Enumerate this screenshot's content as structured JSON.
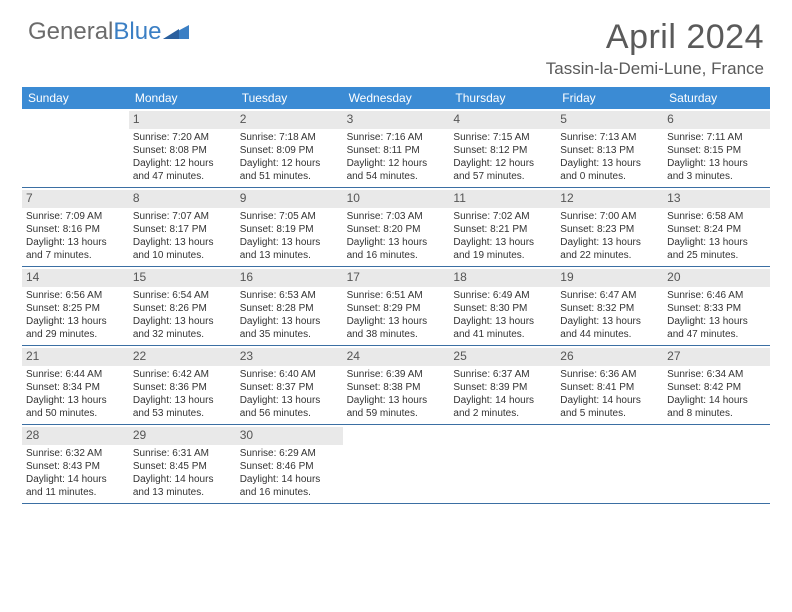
{
  "brand": {
    "part1": "General",
    "part2": "Blue"
  },
  "title": "April 2024",
  "location": "Tassin-la-Demi-Lune, France",
  "colors": {
    "header_bg": "#3b8bd4",
    "border": "#3b6fa3",
    "daynum_bg": "#e9e9e9",
    "text": "#333333",
    "brand_gray": "#6b6b6b",
    "brand_blue": "#3b7fc4"
  },
  "dow": [
    "Sunday",
    "Monday",
    "Tuesday",
    "Wednesday",
    "Thursday",
    "Friday",
    "Saturday"
  ],
  "weeks": [
    [
      {
        "day": "",
        "sunrise": "",
        "sunset": "",
        "daylight": ""
      },
      {
        "day": "1",
        "sunrise": "Sunrise: 7:20 AM",
        "sunset": "Sunset: 8:08 PM",
        "daylight": "Daylight: 12 hours and 47 minutes."
      },
      {
        "day": "2",
        "sunrise": "Sunrise: 7:18 AM",
        "sunset": "Sunset: 8:09 PM",
        "daylight": "Daylight: 12 hours and 51 minutes."
      },
      {
        "day": "3",
        "sunrise": "Sunrise: 7:16 AM",
        "sunset": "Sunset: 8:11 PM",
        "daylight": "Daylight: 12 hours and 54 minutes."
      },
      {
        "day": "4",
        "sunrise": "Sunrise: 7:15 AM",
        "sunset": "Sunset: 8:12 PM",
        "daylight": "Daylight: 12 hours and 57 minutes."
      },
      {
        "day": "5",
        "sunrise": "Sunrise: 7:13 AM",
        "sunset": "Sunset: 8:13 PM",
        "daylight": "Daylight: 13 hours and 0 minutes."
      },
      {
        "day": "6",
        "sunrise": "Sunrise: 7:11 AM",
        "sunset": "Sunset: 8:15 PM",
        "daylight": "Daylight: 13 hours and 3 minutes."
      }
    ],
    [
      {
        "day": "7",
        "sunrise": "Sunrise: 7:09 AM",
        "sunset": "Sunset: 8:16 PM",
        "daylight": "Daylight: 13 hours and 7 minutes."
      },
      {
        "day": "8",
        "sunrise": "Sunrise: 7:07 AM",
        "sunset": "Sunset: 8:17 PM",
        "daylight": "Daylight: 13 hours and 10 minutes."
      },
      {
        "day": "9",
        "sunrise": "Sunrise: 7:05 AM",
        "sunset": "Sunset: 8:19 PM",
        "daylight": "Daylight: 13 hours and 13 minutes."
      },
      {
        "day": "10",
        "sunrise": "Sunrise: 7:03 AM",
        "sunset": "Sunset: 8:20 PM",
        "daylight": "Daylight: 13 hours and 16 minutes."
      },
      {
        "day": "11",
        "sunrise": "Sunrise: 7:02 AM",
        "sunset": "Sunset: 8:21 PM",
        "daylight": "Daylight: 13 hours and 19 minutes."
      },
      {
        "day": "12",
        "sunrise": "Sunrise: 7:00 AM",
        "sunset": "Sunset: 8:23 PM",
        "daylight": "Daylight: 13 hours and 22 minutes."
      },
      {
        "day": "13",
        "sunrise": "Sunrise: 6:58 AM",
        "sunset": "Sunset: 8:24 PM",
        "daylight": "Daylight: 13 hours and 25 minutes."
      }
    ],
    [
      {
        "day": "14",
        "sunrise": "Sunrise: 6:56 AM",
        "sunset": "Sunset: 8:25 PM",
        "daylight": "Daylight: 13 hours and 29 minutes."
      },
      {
        "day": "15",
        "sunrise": "Sunrise: 6:54 AM",
        "sunset": "Sunset: 8:26 PM",
        "daylight": "Daylight: 13 hours and 32 minutes."
      },
      {
        "day": "16",
        "sunrise": "Sunrise: 6:53 AM",
        "sunset": "Sunset: 8:28 PM",
        "daylight": "Daylight: 13 hours and 35 minutes."
      },
      {
        "day": "17",
        "sunrise": "Sunrise: 6:51 AM",
        "sunset": "Sunset: 8:29 PM",
        "daylight": "Daylight: 13 hours and 38 minutes."
      },
      {
        "day": "18",
        "sunrise": "Sunrise: 6:49 AM",
        "sunset": "Sunset: 8:30 PM",
        "daylight": "Daylight: 13 hours and 41 minutes."
      },
      {
        "day": "19",
        "sunrise": "Sunrise: 6:47 AM",
        "sunset": "Sunset: 8:32 PM",
        "daylight": "Daylight: 13 hours and 44 minutes."
      },
      {
        "day": "20",
        "sunrise": "Sunrise: 6:46 AM",
        "sunset": "Sunset: 8:33 PM",
        "daylight": "Daylight: 13 hours and 47 minutes."
      }
    ],
    [
      {
        "day": "21",
        "sunrise": "Sunrise: 6:44 AM",
        "sunset": "Sunset: 8:34 PM",
        "daylight": "Daylight: 13 hours and 50 minutes."
      },
      {
        "day": "22",
        "sunrise": "Sunrise: 6:42 AM",
        "sunset": "Sunset: 8:36 PM",
        "daylight": "Daylight: 13 hours and 53 minutes."
      },
      {
        "day": "23",
        "sunrise": "Sunrise: 6:40 AM",
        "sunset": "Sunset: 8:37 PM",
        "daylight": "Daylight: 13 hours and 56 minutes."
      },
      {
        "day": "24",
        "sunrise": "Sunrise: 6:39 AM",
        "sunset": "Sunset: 8:38 PM",
        "daylight": "Daylight: 13 hours and 59 minutes."
      },
      {
        "day": "25",
        "sunrise": "Sunrise: 6:37 AM",
        "sunset": "Sunset: 8:39 PM",
        "daylight": "Daylight: 14 hours and 2 minutes."
      },
      {
        "day": "26",
        "sunrise": "Sunrise: 6:36 AM",
        "sunset": "Sunset: 8:41 PM",
        "daylight": "Daylight: 14 hours and 5 minutes."
      },
      {
        "day": "27",
        "sunrise": "Sunrise: 6:34 AM",
        "sunset": "Sunset: 8:42 PM",
        "daylight": "Daylight: 14 hours and 8 minutes."
      }
    ],
    [
      {
        "day": "28",
        "sunrise": "Sunrise: 6:32 AM",
        "sunset": "Sunset: 8:43 PM",
        "daylight": "Daylight: 14 hours and 11 minutes."
      },
      {
        "day": "29",
        "sunrise": "Sunrise: 6:31 AM",
        "sunset": "Sunset: 8:45 PM",
        "daylight": "Daylight: 14 hours and 13 minutes."
      },
      {
        "day": "30",
        "sunrise": "Sunrise: 6:29 AM",
        "sunset": "Sunset: 8:46 PM",
        "daylight": "Daylight: 14 hours and 16 minutes."
      },
      {
        "day": "",
        "sunrise": "",
        "sunset": "",
        "daylight": ""
      },
      {
        "day": "",
        "sunrise": "",
        "sunset": "",
        "daylight": ""
      },
      {
        "day": "",
        "sunrise": "",
        "sunset": "",
        "daylight": ""
      },
      {
        "day": "",
        "sunrise": "",
        "sunset": "",
        "daylight": ""
      }
    ]
  ]
}
